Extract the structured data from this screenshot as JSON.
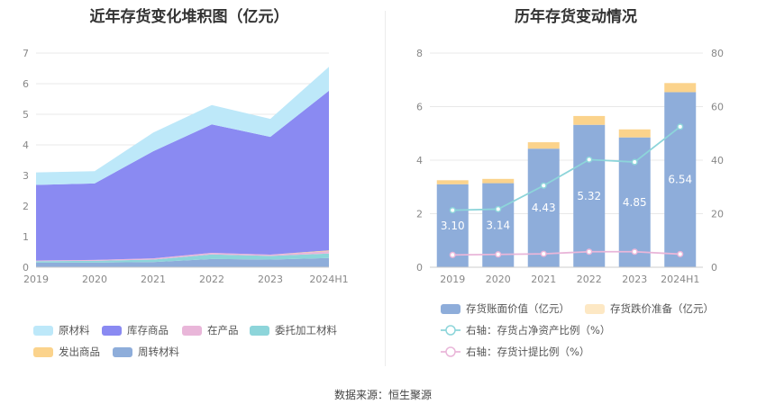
{
  "source": "数据来源：恒生聚源",
  "chart_data": [
    {
      "type": "area",
      "title": "近年存货变化堆积图（亿元）",
      "stacked": true,
      "x": [
        "2019",
        "2020",
        "2021",
        "2022",
        "2023",
        "2024H1"
      ],
      "ylim": [
        0,
        7
      ],
      "yticks": [
        "0",
        "1",
        "2",
        "3",
        "4",
        "5",
        "6",
        "7"
      ],
      "grid": true,
      "legend_position": "bottom",
      "series": [
        {
          "name": "周转材料",
          "color": "#8EADDA",
          "values": [
            0.15,
            0.15,
            0.17,
            0.27,
            0.25,
            0.3
          ]
        },
        {
          "name": "委托加工材料",
          "color": "#8DD5DA",
          "values": [
            0.05,
            0.06,
            0.08,
            0.15,
            0.12,
            0.15
          ]
        },
        {
          "name": "在产品",
          "color": "#E9B6D9",
          "values": [
            0.02,
            0.03,
            0.04,
            0.05,
            0.04,
            0.08
          ]
        },
        {
          "name": "发出商品",
          "color": "#FBD38C",
          "values": [
            0.0,
            0.0,
            0.0,
            0.0,
            0.0,
            0.02
          ]
        },
        {
          "name": "库存商品",
          "color": "#8A8AF2",
          "values": [
            2.47,
            2.5,
            3.5,
            4.2,
            3.85,
            5.22
          ]
        },
        {
          "name": "原材料",
          "color": "#BDE8F9",
          "values": [
            0.41,
            0.4,
            0.61,
            0.63,
            0.59,
            0.78
          ]
        }
      ],
      "legend_order": [
        "原材料",
        "库存商品",
        "在产品",
        "委托加工材料",
        "发出商品",
        "周转材料"
      ]
    },
    {
      "type": "bar",
      "title": "历年存货变动情况",
      "categories": [
        "2019",
        "2020",
        "2021",
        "2022",
        "2023",
        "2024H1"
      ],
      "ylim": [
        0,
        8
      ],
      "yticks": [
        "0",
        "2",
        "4",
        "6",
        "8"
      ],
      "y2lim": [
        0,
        80
      ],
      "y2ticks": [
        "0",
        "20",
        "40",
        "60",
        "80"
      ],
      "grid": true,
      "legend_position": "bottom",
      "series": [
        {
          "name": "存货账面价值（亿元）",
          "type": "bar",
          "color": "#8EADDA",
          "values": [
            3.1,
            3.14,
            4.43,
            5.32,
            4.85,
            6.54
          ],
          "labels": [
            "3.10",
            "3.14",
            "4.43",
            "5.32",
            "4.85",
            "6.54"
          ]
        },
        {
          "name": "存货跌价准备（亿元）",
          "type": "bar",
          "stacked": true,
          "color": "#FBD38C",
          "legend_color": "#FDE8C4",
          "values": [
            0.15,
            0.16,
            0.24,
            0.33,
            0.3,
            0.34
          ]
        },
        {
          "name": "右轴：存货占净资产比例（%）",
          "type": "line",
          "axis": "right",
          "color": "#8DD5DA",
          "values": [
            21.3,
            21.7,
            30.5,
            40.2,
            39.3,
            52.5
          ]
        },
        {
          "name": "右轴：存货计提比例（%）",
          "type": "line",
          "axis": "right",
          "color": "#E9B6D9",
          "values": [
            4.6,
            4.8,
            5.0,
            5.8,
            5.8,
            4.9
          ]
        }
      ]
    }
  ]
}
